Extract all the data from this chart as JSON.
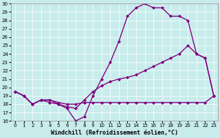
{
  "xlabel": "Windchill (Refroidissement éolien,°C)",
  "ylabel": "",
  "xlim": [
    -0.5,
    23.5
  ],
  "ylim": [
    16,
    30
  ],
  "xticks": [
    0,
    1,
    2,
    3,
    4,
    5,
    6,
    7,
    8,
    9,
    10,
    11,
    12,
    13,
    14,
    15,
    16,
    17,
    18,
    19,
    20,
    21,
    22,
    23
  ],
  "yticks": [
    16,
    17,
    18,
    19,
    20,
    21,
    22,
    23,
    24,
    25,
    26,
    27,
    28,
    29,
    30
  ],
  "background_color": "#c8ecec",
  "line_color": "#800080",
  "line1_x": [
    0,
    1,
    2,
    3,
    4,
    5,
    6,
    7,
    8,
    9,
    10,
    11,
    12,
    13,
    14,
    15,
    16,
    17,
    18,
    19,
    20,
    21,
    22,
    23
  ],
  "line1_y": [
    19.5,
    19.0,
    18.0,
    18.5,
    18.5,
    18.0,
    17.7,
    17.5,
    18.5,
    19.5,
    20.2,
    20.7,
    21.0,
    21.2,
    21.5,
    22.0,
    22.5,
    23.0,
    23.5,
    24.0,
    25.0,
    24.0,
    23.5,
    19.0
  ],
  "line2_x": [
    0,
    1,
    2,
    3,
    4,
    5,
    6,
    7,
    8,
    9,
    10,
    11,
    12,
    13,
    14,
    15,
    16,
    17,
    18,
    19,
    20,
    21,
    22,
    23
  ],
  "line2_y": [
    19.5,
    19.0,
    18.0,
    18.5,
    18.2,
    18.0,
    17.5,
    16.0,
    16.5,
    19.0,
    21.0,
    23.0,
    25.5,
    28.5,
    29.5,
    30.0,
    29.5,
    29.5,
    28.5,
    28.5,
    28.0,
    24.0,
    23.5,
    19.0
  ],
  "line3_x": [
    0,
    1,
    2,
    3,
    4,
    5,
    6,
    7,
    8,
    9,
    10,
    11,
    12,
    13,
    14,
    15,
    16,
    17,
    18,
    19,
    20,
    21,
    22,
    23
  ],
  "line3_y": [
    19.5,
    19.0,
    18.0,
    18.5,
    18.5,
    18.2,
    18.0,
    18.0,
    18.2,
    18.2,
    18.2,
    18.2,
    18.2,
    18.2,
    18.2,
    18.2,
    18.2,
    18.2,
    18.2,
    18.2,
    18.2,
    18.2,
    18.2,
    19.0
  ],
  "marker": "D",
  "markersize": 2,
  "linewidth": 1.0,
  "xlabel_fontsize": 6,
  "tick_fontsize": 5
}
